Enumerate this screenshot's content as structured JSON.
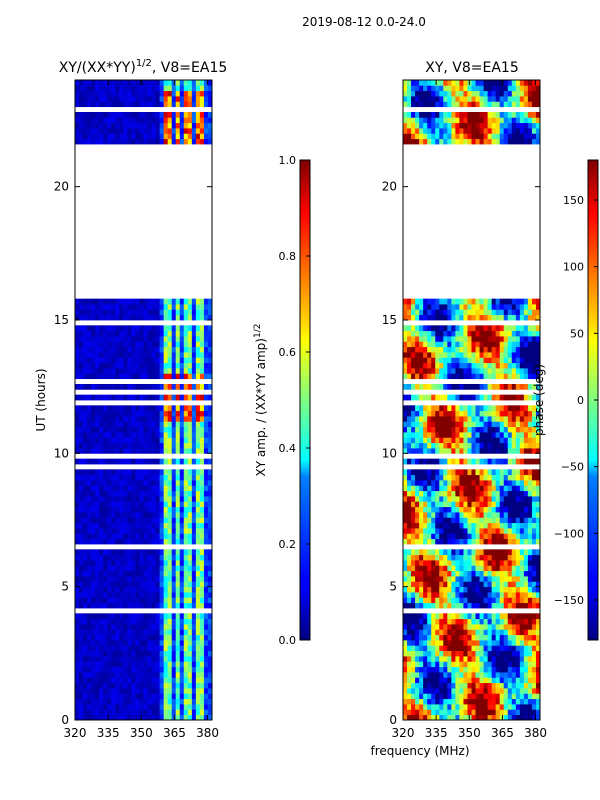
{
  "suptitle": "2019-08-12 0.0-24.0",
  "colors": {
    "white": "#ffffff",
    "axis": "#000000"
  },
  "chart_data": [
    {
      "type": "heatmap",
      "title_main": "XY/(XX*YY)",
      "title_sup": "1/2",
      "title_rest": ", V8=EA15",
      "xlabel": "",
      "ylabel": "UT (hours)",
      "xlim": [
        320,
        382
      ],
      "ylim": [
        0,
        24
      ],
      "xticks": [
        "320",
        "335",
        "350",
        "365",
        "380"
      ],
      "xtick_values": [
        320,
        335,
        350,
        365,
        380
      ],
      "yticks": [
        "0",
        "5",
        "10",
        "15",
        "20"
      ],
      "ytick_values": [
        0,
        5,
        10,
        15,
        20
      ],
      "blank_hours": [
        [
          15.85,
          21.55
        ]
      ],
      "data_signal_channels": [
        [
          360,
          364
        ],
        [
          365,
          368
        ],
        [
          370,
          373
        ],
        [
          375,
          378
        ]
      ],
      "high_amplitude_hours": [
        [
          11.2,
          12.8
        ],
        [
          21.6,
          23.5
        ]
      ],
      "colorbar": {
        "label_main": "XY amp. / (XX*YY amp)",
        "label_sup": "1/2",
        "range": [
          0.0,
          1.0
        ],
        "ticks": [
          "0.0",
          "0.2",
          "0.4",
          "0.6",
          "0.8",
          "1.0"
        ],
        "tick_values": [
          0.0,
          0.2,
          0.4,
          0.6,
          0.8,
          1.0
        ]
      }
    },
    {
      "type": "heatmap",
      "title": "XY, V8=EA15",
      "xlabel": "frequency (MHz)",
      "ylabel": "",
      "xlim": [
        320,
        382
      ],
      "ylim": [
        0,
        24
      ],
      "xticks": [
        "320",
        "335",
        "350",
        "365",
        "380"
      ],
      "xtick_values": [
        320,
        335,
        350,
        365,
        380
      ],
      "yticks": [
        "0",
        "5",
        "10",
        "15",
        "20"
      ],
      "ytick_values": [
        0,
        5,
        10,
        15,
        20
      ],
      "blank_hours": [
        [
          15.85,
          21.55
        ]
      ],
      "colorbar": {
        "label": "phase (deg)",
        "range": [
          -180,
          180
        ],
        "ticks": [
          "−150",
          "−100",
          "−50",
          "0",
          "50",
          "100",
          "150"
        ],
        "tick_values": [
          -150,
          -100,
          -50,
          0,
          50,
          100,
          150
        ]
      }
    }
  ]
}
